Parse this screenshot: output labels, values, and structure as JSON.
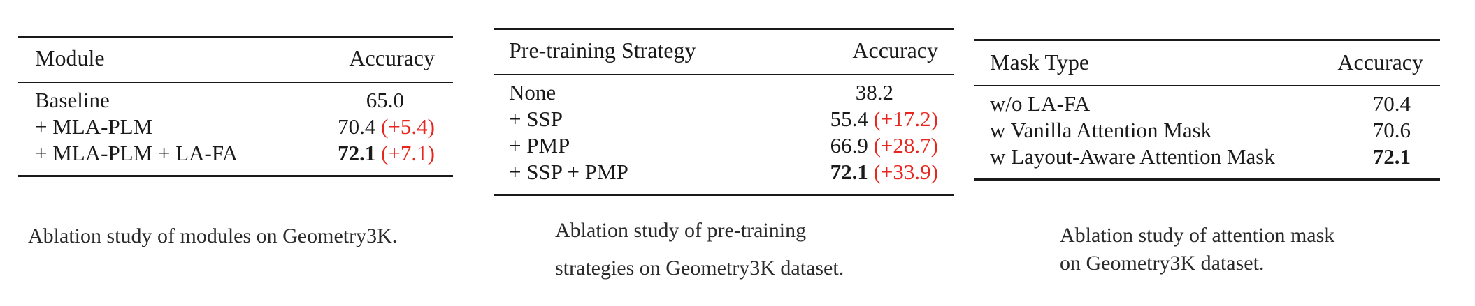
{
  "colors": {
    "text": "#1a1a1a",
    "delta": "#e8261f",
    "rule": "#1a1a1a"
  },
  "tables": [
    {
      "header": {
        "col1": "Module",
        "col2": "Accuracy"
      },
      "rows": [
        {
          "label": "Baseline",
          "value": "65.0",
          "delta": "",
          "bold": false
        },
        {
          "label": "+ MLA-PLM",
          "value": "70.4",
          "delta": "(+5.4)",
          "bold": false
        },
        {
          "label": "+ MLA-PLM + LA-FA",
          "value": "72.1",
          "delta": "(+7.1)",
          "bold": true
        }
      ],
      "caption": [
        "Ablation study of modules on Geometry3K."
      ]
    },
    {
      "header": {
        "col1": "Pre-training Strategy",
        "col2": "Accuracy"
      },
      "rows": [
        {
          "label": "None",
          "value": "38.2",
          "delta": "",
          "bold": false
        },
        {
          "label": "+ SSP",
          "value": "55.4",
          "delta": "(+17.2)",
          "bold": false
        },
        {
          "label": "+ PMP",
          "value": "66.9",
          "delta": "(+28.7)",
          "bold": false
        },
        {
          "label": "+ SSP + PMP",
          "value": "72.1",
          "delta": "(+33.9)",
          "bold": true
        }
      ],
      "caption": [
        "Ablation study of pre-training",
        "strategies on Geometry3K dataset."
      ]
    },
    {
      "header": {
        "col1": "Mask Type",
        "col2": "Accuracy"
      },
      "rows": [
        {
          "label": "w/o LA-FA",
          "value": "70.4",
          "delta": "",
          "bold": false
        },
        {
          "label": "w Vanilla Attention Mask",
          "value": "70.6",
          "delta": "",
          "bold": false
        },
        {
          "label": "w Layout-Aware Attention Mask",
          "value": "72.1",
          "delta": "",
          "bold": true
        }
      ],
      "caption": [
        "Ablation study of attention mask",
        "on Geometry3K dataset."
      ]
    }
  ]
}
